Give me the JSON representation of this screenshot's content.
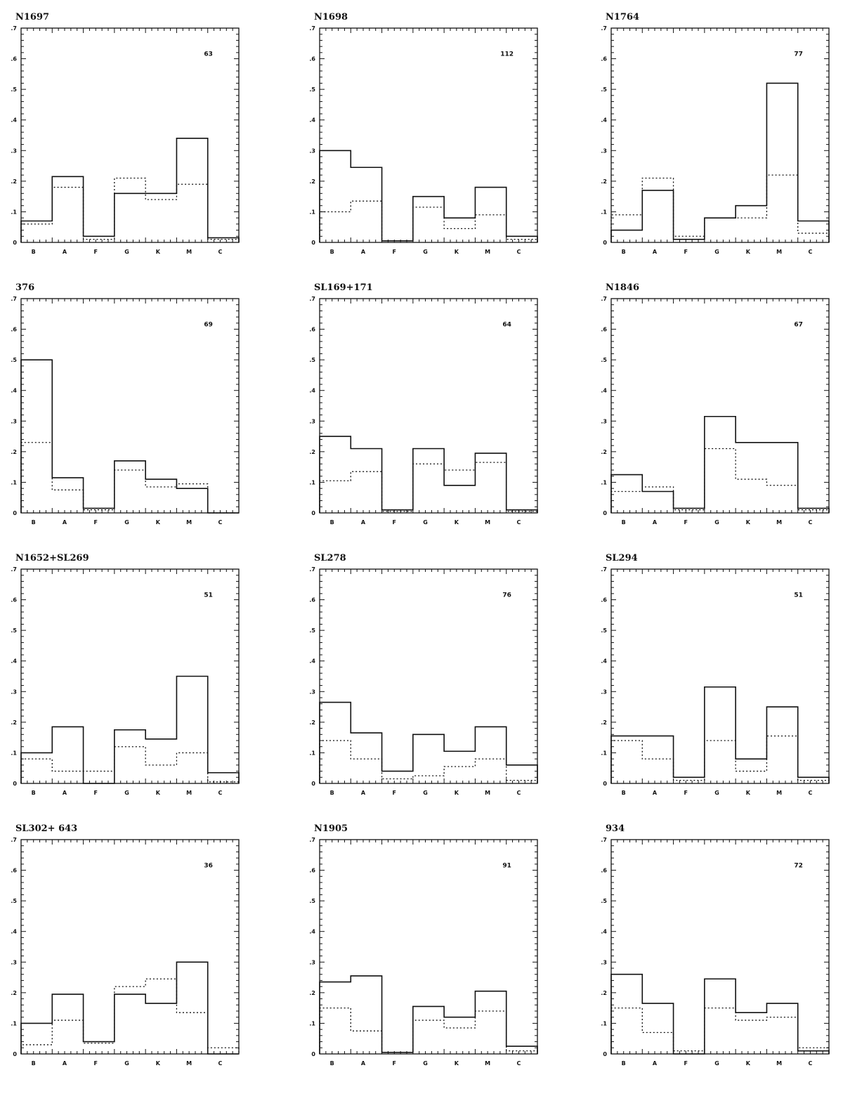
{
  "figure": {
    "colors": {
      "ink": "#111111",
      "background": "#ffffff"
    }
  },
  "chart_data": [
    {
      "type": "bar",
      "title": "N1697",
      "count_label": "63",
      "categories": [
        "B",
        "A",
        "F",
        "G",
        "K",
        "M",
        "C"
      ],
      "ylim": [
        0,
        0.7
      ],
      "yticks": [
        ".7",
        ".6",
        ".5",
        ".4",
        ".3",
        ".2",
        ".1",
        "0"
      ],
      "series": [
        {
          "style": "solid",
          "values": [
            0.07,
            0.215,
            0.02,
            0.16,
            0.16,
            0.34,
            0.015
          ]
        },
        {
          "style": "dotted",
          "values": [
            0.06,
            0.18,
            0.01,
            0.21,
            0.14,
            0.19,
            0.01
          ]
        }
      ]
    },
    {
      "type": "bar",
      "title": "N1698",
      "count_label": "112",
      "categories": [
        "B",
        "A",
        "F",
        "G",
        "K",
        "M",
        "C"
      ],
      "ylim": [
        0,
        0.7
      ],
      "yticks": [
        ".7",
        ".6",
        ".5",
        ".4",
        ".3",
        ".2",
        ".1",
        "0"
      ],
      "series": [
        {
          "style": "solid",
          "values": [
            0.3,
            0.245,
            0.005,
            0.15,
            0.08,
            0.18,
            0.02
          ]
        },
        {
          "style": "dotted",
          "values": [
            0.1,
            0.135,
            0.005,
            0.115,
            0.045,
            0.09,
            0.01
          ]
        }
      ]
    },
    {
      "type": "bar",
      "title": "N1764",
      "count_label": "77",
      "categories": [
        "B",
        "A",
        "F",
        "G",
        "K",
        "M",
        "C"
      ],
      "ylim": [
        0,
        0.7
      ],
      "yticks": [
        ".7",
        ".6",
        ".5",
        ".4",
        ".3",
        ".2",
        ".1",
        "0"
      ],
      "series": [
        {
          "style": "solid",
          "values": [
            0.04,
            0.17,
            0.01,
            0.08,
            0.12,
            0.52,
            0.07
          ]
        },
        {
          "style": "dotted",
          "values": [
            0.09,
            0.21,
            0.02,
            0.08,
            0.08,
            0.22,
            0.03
          ]
        }
      ]
    },
    {
      "type": "bar",
      "title": "376",
      "count_label": "69",
      "categories": [
        "B",
        "A",
        "F",
        "G",
        "K",
        "M",
        "C"
      ],
      "ylim": [
        0,
        0.7
      ],
      "yticks": [
        ".7",
        ".6",
        ".5",
        ".4",
        ".3",
        ".2",
        ".1",
        "0"
      ],
      "series": [
        {
          "style": "solid",
          "values": [
            0.5,
            0.115,
            0.015,
            0.17,
            0.11,
            0.08,
            0.0
          ]
        },
        {
          "style": "dotted",
          "values": [
            0.23,
            0.075,
            0.01,
            0.14,
            0.085,
            0.095,
            0.0
          ]
        }
      ]
    },
    {
      "type": "bar",
      "title": "SL169+171",
      "count_label": "64",
      "categories": [
        "B",
        "A",
        "F",
        "G",
        "K",
        "M",
        "C"
      ],
      "ylim": [
        0,
        0.7
      ],
      "yticks": [
        ".7",
        ".6",
        ".5",
        ".4",
        ".3",
        ".2",
        ".1",
        "0"
      ],
      "series": [
        {
          "style": "solid",
          "values": [
            0.25,
            0.21,
            0.01,
            0.21,
            0.09,
            0.195,
            0.01
          ]
        },
        {
          "style": "dotted",
          "values": [
            0.105,
            0.135,
            0.005,
            0.16,
            0.14,
            0.165,
            0.005
          ]
        }
      ]
    },
    {
      "type": "bar",
      "title": "N1846",
      "count_label": "67",
      "categories": [
        "B",
        "A",
        "F",
        "G",
        "K",
        "M",
        "C"
      ],
      "ylim": [
        0,
        0.7
      ],
      "yticks": [
        ".7",
        ".6",
        ".5",
        ".4",
        ".3",
        ".2",
        ".1",
        "0"
      ],
      "series": [
        {
          "style": "solid",
          "values": [
            0.125,
            0.07,
            0.015,
            0.315,
            0.23,
            0.23,
            0.015
          ]
        },
        {
          "style": "dotted",
          "values": [
            0.07,
            0.085,
            0.01,
            0.21,
            0.11,
            0.09,
            0.01
          ]
        }
      ]
    },
    {
      "type": "bar",
      "title": "N1652+SL269",
      "count_label": "51",
      "categories": [
        "B",
        "A",
        "F",
        "G",
        "K",
        "M",
        "C"
      ],
      "ylim": [
        0,
        0.7
      ],
      "yticks": [
        ".7",
        ".6",
        ".5",
        ".4",
        ".3",
        ".2",
        ".1",
        "0"
      ],
      "series": [
        {
          "style": "solid",
          "values": [
            0.1,
            0.185,
            0.0,
            0.175,
            0.145,
            0.35,
            0.035
          ]
        },
        {
          "style": "dotted",
          "values": [
            0.08,
            0.04,
            0.04,
            0.12,
            0.06,
            0.1,
            0.005
          ]
        }
      ]
    },
    {
      "type": "bar",
      "title": "SL278",
      "count_label": "76",
      "categories": [
        "B",
        "A",
        "F",
        "G",
        "K",
        "M",
        "C"
      ],
      "ylim": [
        0,
        0.7
      ],
      "yticks": [
        ".7",
        ".6",
        ".5",
        ".4",
        ".3",
        ".2",
        ".1",
        "0"
      ],
      "series": [
        {
          "style": "solid",
          "values": [
            0.265,
            0.165,
            0.04,
            0.16,
            0.105,
            0.185,
            0.06
          ]
        },
        {
          "style": "dotted",
          "values": [
            0.14,
            0.08,
            0.015,
            0.025,
            0.055,
            0.08,
            0.01
          ]
        }
      ]
    },
    {
      "type": "bar",
      "title": "SL294",
      "count_label": "51",
      "categories": [
        "B",
        "A",
        "F",
        "G",
        "K",
        "M",
        "C"
      ],
      "ylim": [
        0,
        0.7
      ],
      "yticks": [
        ".7",
        ".6",
        ".5",
        ".4",
        ".3",
        ".2",
        ".1",
        "0"
      ],
      "series": [
        {
          "style": "solid",
          "values": [
            0.155,
            0.155,
            0.02,
            0.315,
            0.08,
            0.25,
            0.02
          ]
        },
        {
          "style": "dotted",
          "values": [
            0.14,
            0.08,
            0.01,
            0.14,
            0.04,
            0.155,
            0.01
          ]
        }
      ]
    },
    {
      "type": "bar",
      "title": "SL302+ 643",
      "count_label": "36",
      "categories": [
        "B",
        "A",
        "F",
        "G",
        "K",
        "M",
        "C"
      ],
      "ylim": [
        0,
        0.7
      ],
      "yticks": [
        ".7",
        ".6",
        ".5",
        ".4",
        ".3",
        ".2",
        ".1",
        "0"
      ],
      "series": [
        {
          "style": "solid",
          "values": [
            0.1,
            0.195,
            0.04,
            0.195,
            0.165,
            0.3,
            0.0
          ]
        },
        {
          "style": "dotted",
          "values": [
            0.03,
            0.11,
            0.035,
            0.22,
            0.245,
            0.135,
            0.02
          ]
        }
      ]
    },
    {
      "type": "bar",
      "title": "N1905",
      "count_label": "91",
      "categories": [
        "B",
        "A",
        "F",
        "G",
        "K",
        "M",
        "C"
      ],
      "ylim": [
        0,
        0.7
      ],
      "yticks": [
        ".7",
        ".6",
        ".5",
        ".4",
        ".3",
        ".2",
        ".1",
        "0"
      ],
      "series": [
        {
          "style": "solid",
          "values": [
            0.235,
            0.255,
            0.005,
            0.155,
            0.12,
            0.205,
            0.025
          ]
        },
        {
          "style": "dotted",
          "values": [
            0.15,
            0.075,
            0.005,
            0.11,
            0.085,
            0.14,
            0.01
          ]
        }
      ]
    },
    {
      "type": "bar",
      "title": "934",
      "count_label": "72",
      "categories": [
        "B",
        "A",
        "F",
        "G",
        "K",
        "M",
        "C"
      ],
      "ylim": [
        0,
        0.7
      ],
      "yticks": [
        ".7",
        ".6",
        ".5",
        ".4",
        ".3",
        ".2",
        ".1",
        "0"
      ],
      "series": [
        {
          "style": "solid",
          "values": [
            0.26,
            0.165,
            0.0,
            0.245,
            0.135,
            0.165,
            0.01
          ]
        },
        {
          "style": "dotted",
          "values": [
            0.15,
            0.07,
            0.01,
            0.15,
            0.11,
            0.12,
            0.02
          ]
        }
      ]
    }
  ]
}
